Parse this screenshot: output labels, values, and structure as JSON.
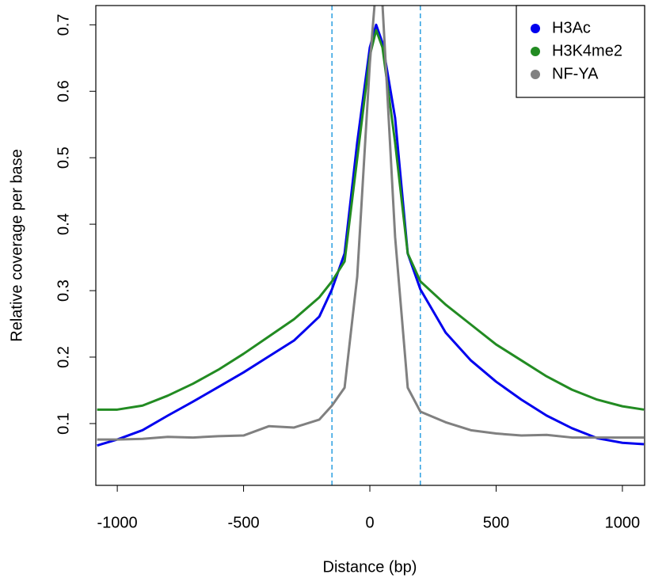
{
  "chart_data": {
    "type": "line",
    "x_label": "Distance (bp)",
    "y_label": "Relative coverage per base",
    "x": [
      -1080,
      -1000,
      -900,
      -800,
      -700,
      -600,
      -500,
      -400,
      -300,
      -200,
      -150,
      -100,
      -50,
      0,
      25,
      50,
      100,
      150,
      200,
      300,
      400,
      500,
      600,
      700,
      800,
      900,
      1000,
      1085
    ],
    "series": [
      {
        "name": "H3Ac",
        "color": "#0000ee",
        "values": [
          0.067,
          0.076,
          0.09,
          0.112,
          0.133,
          0.155,
          0.177,
          0.201,
          0.225,
          0.261,
          0.302,
          0.356,
          0.523,
          0.666,
          0.7,
          0.673,
          0.56,
          0.356,
          0.302,
          0.237,
          0.195,
          0.163,
          0.136,
          0.112,
          0.093,
          0.078,
          0.071,
          0.069
        ]
      },
      {
        "name": "H3K4me2",
        "color": "#228b22",
        "values": [
          0.121,
          0.121,
          0.127,
          0.142,
          0.16,
          0.181,
          0.205,
          0.231,
          0.257,
          0.29,
          0.314,
          0.344,
          0.499,
          0.654,
          0.692,
          0.666,
          0.523,
          0.356,
          0.314,
          0.279,
          0.249,
          0.219,
          0.195,
          0.171,
          0.151,
          0.136,
          0.126,
          0.121
        ]
      },
      {
        "name": "NF-YA",
        "color": "#808080",
        "values": [
          0.076,
          0.076,
          0.077,
          0.08,
          0.079,
          0.081,
          0.082,
          0.096,
          0.094,
          0.106,
          0.127,
          0.154,
          0.321,
          0.642,
          0.76,
          0.731,
          0.381,
          0.154,
          0.118,
          0.102,
          0.09,
          0.085,
          0.082,
          0.083,
          0.079,
          0.079,
          0.079,
          0.079
        ]
      }
    ],
    "vlines": [
      -150,
      200
    ],
    "vline_color": "#2b9fe0",
    "xlim": [
      -1085,
      1088
    ],
    "ylim": [
      0.007,
      0.729
    ],
    "xticks": [
      -1000,
      -500,
      0,
      500,
      1000
    ],
    "yticks": [
      0.1,
      0.2,
      0.3,
      0.4,
      0.5,
      0.6,
      0.7
    ],
    "legend": "top-right"
  }
}
